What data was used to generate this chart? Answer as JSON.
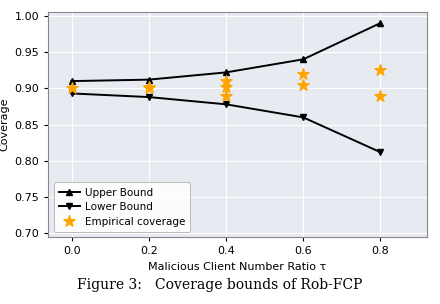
{
  "x": [
    0.0,
    0.2,
    0.4,
    0.6,
    0.8
  ],
  "upper_bound": [
    0.91,
    0.912,
    0.922,
    0.94,
    0.99
  ],
  "lower_bound": [
    0.893,
    0.888,
    0.878,
    0.86,
    0.812
  ],
  "empirical_data": {
    "0.0": [
      0.9
    ],
    "0.2": [
      0.902,
      0.9
    ],
    "0.4": [
      0.91,
      0.902,
      0.89
    ],
    "0.6": [
      0.92,
      0.905
    ],
    "0.8": [
      0.925,
      0.89
    ]
  },
  "line_color": "#000000",
  "star_color": "#FFA500",
  "background_color": "#E8EAF2",
  "fig_background": "#FFFFFF",
  "xlabel": "Malicious Client Number Ratio τ",
  "ylabel": "Coverage",
  "xlim": [
    -0.06,
    0.92
  ],
  "ylim": [
    0.695,
    1.005
  ],
  "yticks": [
    0.7,
    0.75,
    0.8,
    0.85,
    0.9,
    0.95,
    1.0
  ],
  "xticks": [
    0.0,
    0.2,
    0.4,
    0.6,
    0.8
  ],
  "legend_upper": "Upper Bound",
  "legend_lower": "Lower Bound",
  "legend_empirical": "Empirical coverage",
  "axis_fontsize": 8,
  "tick_fontsize": 8,
  "legend_fontsize": 7.5,
  "caption": "Figure 3:   Coverage bounds of Rob-FCP",
  "caption_fontsize": 10
}
